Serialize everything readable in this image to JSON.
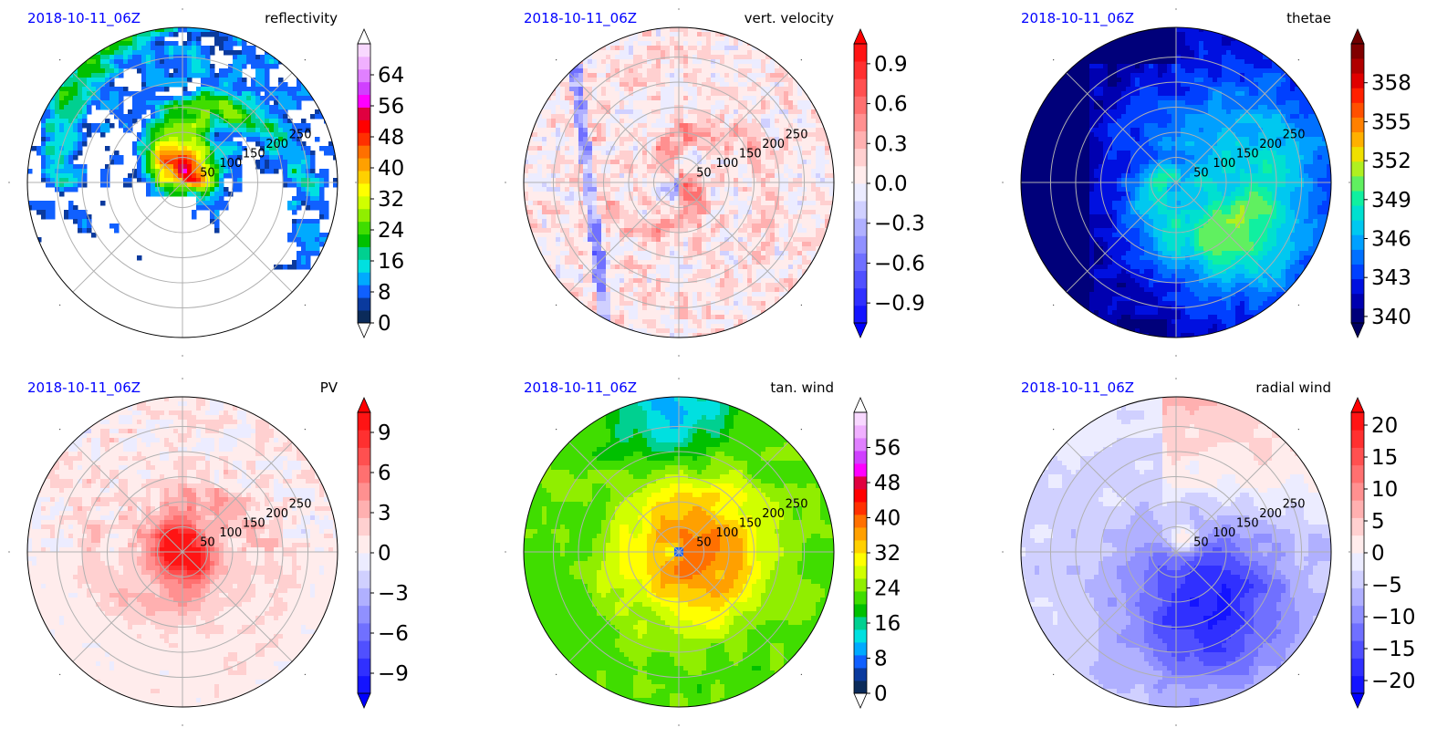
{
  "chart_data": [
    {
      "type": "heatmap",
      "projection": "polar",
      "date_label": "2018-10-11_06Z",
      "title": "reflectivity",
      "radial_ticks": [
        "50",
        "100",
        "150",
        "200",
        "250"
      ],
      "colorbar": {
        "ticks": [
          0,
          8,
          16,
          24,
          32,
          40,
          48,
          56,
          64
        ],
        "tick_labels": [
          "0",
          "8",
          "16",
          "24",
          "32",
          "40",
          "48",
          "56",
          "64"
        ],
        "vmin": 0,
        "vmax": 72,
        "extend": "both",
        "colors": [
          "#0b2b5a",
          "#0a3a9e",
          "#1060ff",
          "#00aaff",
          "#00e0e0",
          "#00d090",
          "#00c000",
          "#40dd00",
          "#90ee00",
          "#d0ff00",
          "#ffff00",
          "#ffd000",
          "#ffa000",
          "#ff7000",
          "#ff3000",
          "#ff0000",
          "#e00040",
          "#ff00ff",
          "#d040ff",
          "#e080ff",
          "#f0b0ff",
          "#f8d8ff"
        ],
        "extend_colors": [
          "#ffffff",
          "#ffffff"
        ]
      },
      "background": "#ffffff",
      "pattern": "reflectivity"
    },
    {
      "type": "heatmap",
      "projection": "polar",
      "date_label": "2018-10-11_06Z",
      "title": "vert. velocity",
      "radial_ticks": [
        "50",
        "100",
        "150",
        "200",
        "250"
      ],
      "colorbar": {
        "ticks": [
          -0.9,
          -0.6,
          -0.3,
          0.0,
          0.3,
          0.6,
          0.9
        ],
        "tick_labels": [
          "−0.9",
          "−0.6",
          "−0.3",
          "0.0",
          "0.3",
          "0.6",
          "0.9"
        ],
        "vmin": -1.05,
        "vmax": 1.05,
        "extend": "both",
        "colors": [
          "#1414ff",
          "#3030ff",
          "#5050ff",
          "#7070ff",
          "#9090ff",
          "#b0b0ff",
          "#d0d0ff",
          "#ececff",
          "#ffecec",
          "#ffd0d0",
          "#ffb0b0",
          "#ff9090",
          "#ff7070",
          "#ff5050",
          "#ff3030",
          "#ff1414"
        ],
        "extend_colors": [
          "#0000ff",
          "#ff0000"
        ]
      },
      "background": "#fff2f2",
      "pattern": "wvel"
    },
    {
      "type": "heatmap",
      "projection": "polar",
      "date_label": "2018-10-11_06Z",
      "title": "thetae",
      "radial_ticks": [
        "50",
        "100",
        "150",
        "200",
        "250"
      ],
      "colorbar": {
        "ticks": [
          340,
          343,
          346,
          349,
          352,
          355,
          358
        ],
        "tick_labels": [
          "340",
          "343",
          "346",
          "349",
          "352",
          "355",
          "358"
        ],
        "vmin": 339.5,
        "vmax": 361,
        "extend": "both",
        "colors": [
          "#00007a",
          "#0000b0",
          "#0010e0",
          "#0040ff",
          "#0070ff",
          "#00a0ff",
          "#00c8f0",
          "#00e0d0",
          "#10f0a0",
          "#60f060",
          "#b0f020",
          "#f0e000",
          "#ffb000",
          "#ff8000",
          "#ff5000",
          "#ff2000",
          "#e00000",
          "#b00000",
          "#800000"
        ],
        "extend_colors": [
          "#000060",
          "#700000"
        ]
      },
      "background": "#00007a",
      "pattern": "thetae"
    },
    {
      "type": "heatmap",
      "projection": "polar",
      "date_label": "2018-10-11_06Z",
      "title": "PV",
      "radial_ticks": [
        "50",
        "100",
        "150",
        "200",
        "250"
      ],
      "colorbar": {
        "ticks": [
          -9,
          -6,
          -3,
          0,
          3,
          6,
          9
        ],
        "tick_labels": [
          "−9",
          "−6",
          "−3",
          "0",
          "3",
          "6",
          "9"
        ],
        "vmin": -10.5,
        "vmax": 10.5,
        "extend": "both",
        "colors": [
          "#1414ff",
          "#3030ff",
          "#5050ff",
          "#7070ff",
          "#9090ff",
          "#b0b0ff",
          "#d0d0ff",
          "#ececff",
          "#ffecec",
          "#ffd0d0",
          "#ffb0b0",
          "#ff9090",
          "#ff7070",
          "#ff5050",
          "#ff3030",
          "#ff1414"
        ],
        "extend_colors": [
          "#0000ff",
          "#ff0000"
        ]
      },
      "background": "#fff2f2",
      "pattern": "pv"
    },
    {
      "type": "heatmap",
      "projection": "polar",
      "date_label": "2018-10-11_06Z",
      "title": "tan. wind",
      "radial_ticks": [
        "50",
        "100",
        "150",
        "200",
        "250"
      ],
      "colorbar": {
        "ticks": [
          0,
          8,
          16,
          24,
          32,
          40,
          48,
          56
        ],
        "tick_labels": [
          "0",
          "8",
          "16",
          "24",
          "32",
          "40",
          "48",
          "56"
        ],
        "vmin": 0,
        "vmax": 64,
        "extend": "both",
        "colors": [
          "#0b2b5a",
          "#0a3a9e",
          "#1060ff",
          "#00aaff",
          "#00e0e0",
          "#00d090",
          "#00c000",
          "#40dd00",
          "#90ee00",
          "#d0ff00",
          "#ffff00",
          "#ffd000",
          "#ffa000",
          "#ff7000",
          "#ff3000",
          "#ff0000",
          "#e00040",
          "#ff00ff",
          "#d040ff",
          "#e080ff",
          "#f0b0ff",
          "#f8d8ff"
        ],
        "extend_colors": [
          "#ffffff",
          "#ffffff"
        ]
      },
      "background": "#60e020",
      "pattern": "tanwind"
    },
    {
      "type": "heatmap",
      "projection": "polar",
      "date_label": "2018-10-11_06Z",
      "title": "radial wind",
      "radial_ticks": [
        "50",
        "100",
        "150",
        "200",
        "250"
      ],
      "colorbar": {
        "ticks": [
          -20,
          -15,
          -10,
          -5,
          0,
          5,
          10,
          15,
          20
        ],
        "tick_labels": [
          "−20",
          "−15",
          "−10",
          "−5",
          "0",
          "5",
          "10",
          "15",
          "20"
        ],
        "vmin": -22,
        "vmax": 22,
        "extend": "both",
        "colors": [
          "#1414ff",
          "#3030ff",
          "#5050ff",
          "#7070ff",
          "#9090ff",
          "#b0b0ff",
          "#d0d0ff",
          "#ececff",
          "#ffecec",
          "#ffd0d0",
          "#ffb0b0",
          "#ff9090",
          "#ff7070",
          "#ff5050",
          "#ff3030",
          "#ff1414"
        ],
        "extend_colors": [
          "#0000ff",
          "#ff0000"
        ]
      },
      "background": "#ececff",
      "pattern": "radwind"
    }
  ],
  "colors": {
    "date_label": "#0000ff",
    "grid": "#b0b0b0",
    "axis_edge": "#000000"
  }
}
